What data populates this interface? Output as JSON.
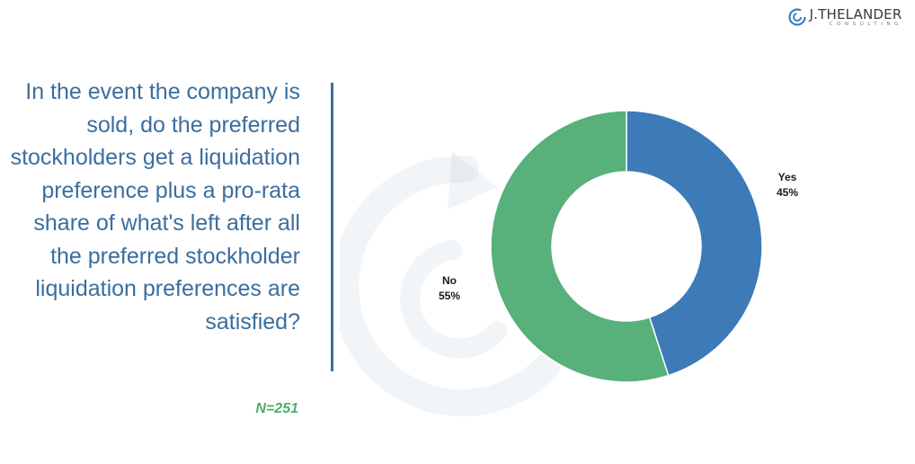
{
  "logo": {
    "name": "J.THELANDER",
    "subtitle": "CONSULTING"
  },
  "question": "In the event the company is sold, do the preferred stockholders get a liquidation preference plus a pro-rata share of what's left after all the preferred stockholder liquidation preferences are satisfied?",
  "sample_size": "N=251",
  "colors": {
    "accent": "#3B6E9E",
    "yes": "#3D7AB8",
    "no": "#58B07A",
    "n_label": "#4CAF6A"
  },
  "chart_data": {
    "type": "pie",
    "donut": true,
    "categories": [
      "Yes",
      "No"
    ],
    "values": [
      45,
      55
    ],
    "labels": [
      "45%",
      "55%"
    ]
  }
}
